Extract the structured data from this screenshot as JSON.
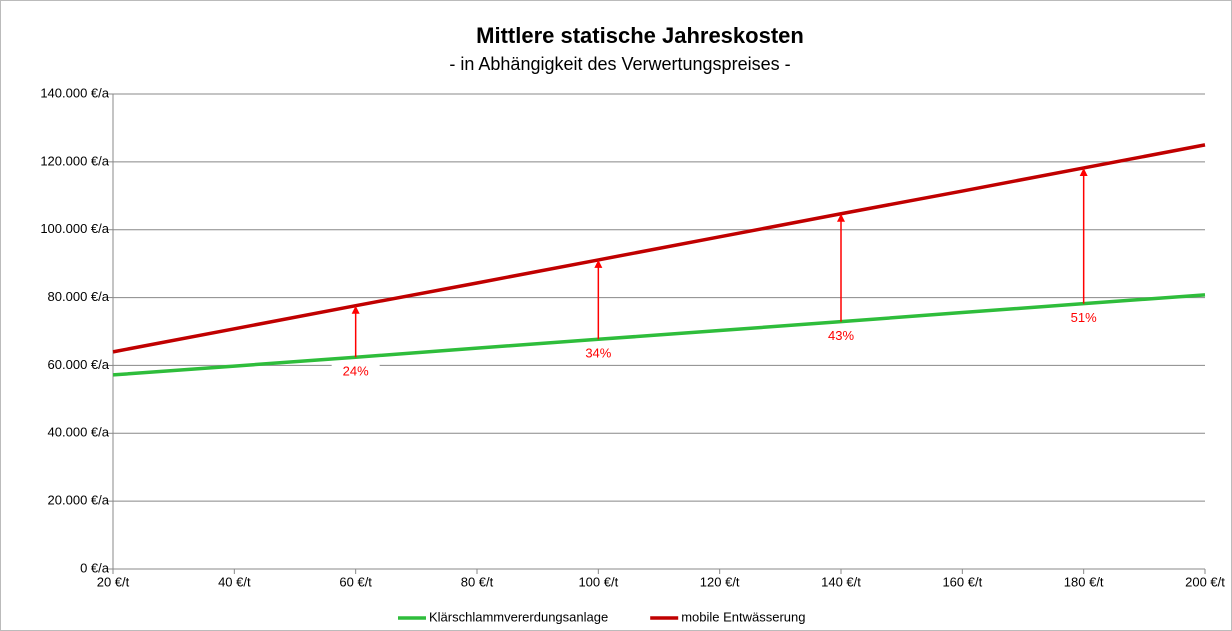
{
  "chart_data": {
    "type": "line",
    "title": "Mittlere statische Jahreskosten",
    "subtitle": "- in Abhängigkeit des Verwertungspreises -",
    "x": [
      20,
      40,
      60,
      80,
      100,
      120,
      140,
      160,
      180,
      200
    ],
    "series": [
      {
        "name": "Klärschlammvererdungsanlage",
        "color": "#2ebd3b",
        "values": [
          57200,
          59800,
          62400,
          65100,
          67700,
          70300,
          72900,
          75600,
          78200,
          80800
        ]
      },
      {
        "name": "mobile Entwässerung",
        "color": "#c00000",
        "values": [
          64000,
          70800,
          77600,
          84300,
          91100,
          97900,
          104700,
          111400,
          118200,
          125000
        ]
      }
    ],
    "annotations": [
      {
        "x": 60,
        "label": "24%"
      },
      {
        "x": 100,
        "label": "34%"
      },
      {
        "x": 140,
        "label": "43%"
      },
      {
        "x": 180,
        "label": "51%"
      }
    ],
    "annotation_color": "#ff0000",
    "xlim": [
      20,
      200
    ],
    "xticks": [
      {
        "value": 20,
        "label": "20 €/t"
      },
      {
        "value": 40,
        "label": "40 €/t"
      },
      {
        "value": 60,
        "label": "60 €/t"
      },
      {
        "value": 80,
        "label": "80 €/t"
      },
      {
        "value": 100,
        "label": "100 €/t"
      },
      {
        "value": 120,
        "label": "120 €/t"
      },
      {
        "value": 140,
        "label": "140 €/t"
      },
      {
        "value": 160,
        "label": "160 €/t"
      },
      {
        "value": 180,
        "label": "180 €/t"
      },
      {
        "value": 200,
        "label": "200 €/t"
      }
    ],
    "ylim": [
      0,
      140000
    ],
    "yticks": [
      {
        "value": 0,
        "label": "0 €/a"
      },
      {
        "value": 20000,
        "label": "20.000 €/a"
      },
      {
        "value": 40000,
        "label": "40.000 €/a"
      },
      {
        "value": 60000,
        "label": "60.000 €/a"
      },
      {
        "value": 80000,
        "label": "80.000 €/a"
      },
      {
        "value": 100000,
        "label": "100.000 €/a"
      },
      {
        "value": 120000,
        "label": "120.000 €/a"
      },
      {
        "value": 140000,
        "label": "140.000 €/a"
      }
    ],
    "grid": true,
    "legend": "bottom"
  }
}
